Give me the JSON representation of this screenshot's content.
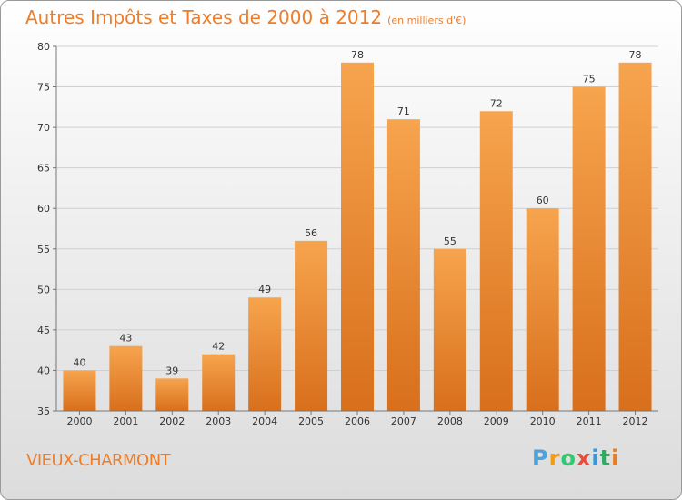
{
  "title": "Autres Impôts et Taxes de 2000 à 2012",
  "subtitle": "(en milliers d'€)",
  "commune": "VIEUX-CHARMONT",
  "logo": "Proxiti",
  "colors": {
    "bar_light": "#f7a44e",
    "bar_dark": "#d86f1c",
    "accent": "#ee7d2a"
  },
  "chart_data": {
    "type": "bar",
    "title": "Autres Impôts et Taxes de 2000 à 2012",
    "subtitle": "(en milliers d'€)",
    "categories": [
      "2000",
      "2001",
      "2002",
      "2003",
      "2004",
      "2005",
      "2006",
      "2007",
      "2008",
      "2009",
      "2010",
      "2011",
      "2012"
    ],
    "values": [
      40,
      43,
      39,
      42,
      49,
      56,
      78,
      71,
      55,
      72,
      60,
      75,
      78
    ],
    "ylim": [
      35,
      80
    ],
    "yticks": [
      35,
      40,
      45,
      50,
      55,
      60,
      65,
      70,
      75,
      80
    ],
    "grid": true
  }
}
